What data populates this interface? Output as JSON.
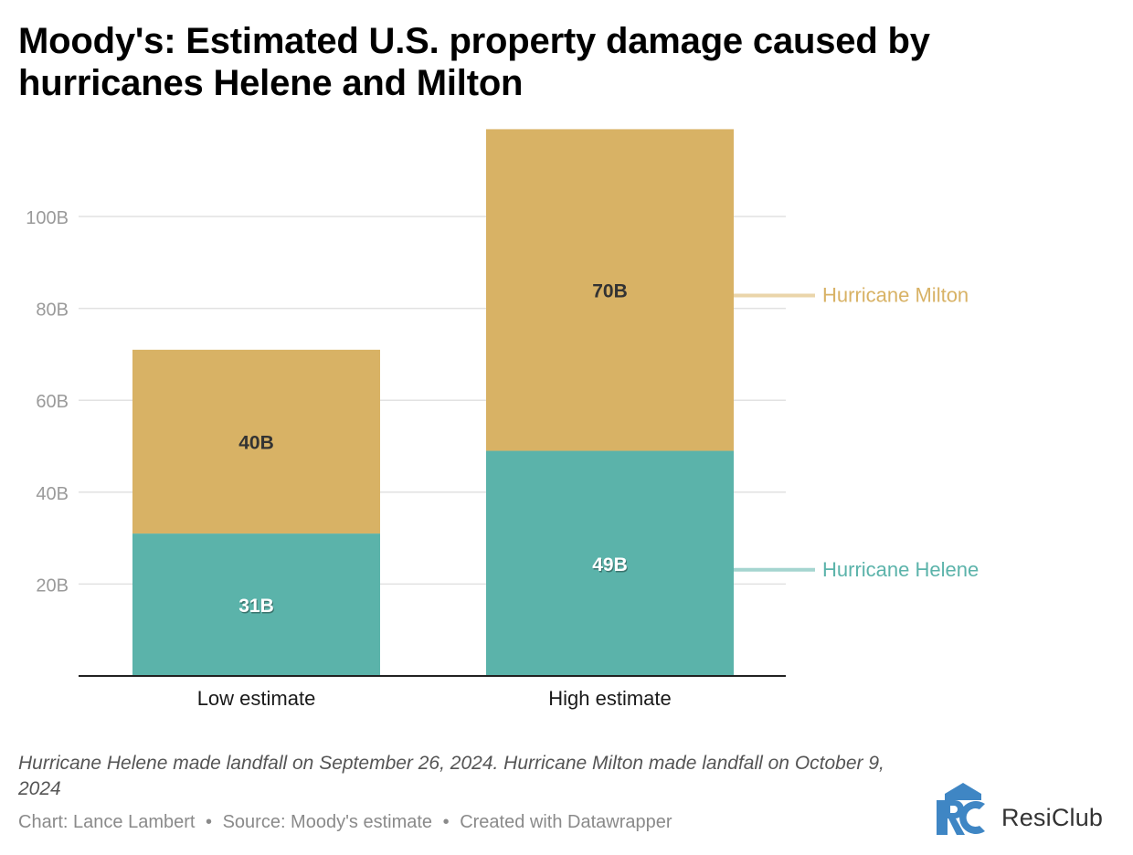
{
  "title_lines": [
    "Moody's: Estimated U.S. property damage caused by",
    "hurricanes Helene and Milton"
  ],
  "chart_data": {
    "type": "bar",
    "stacked": true,
    "categories": [
      "Low estimate",
      "High estimate"
    ],
    "series": [
      {
        "name": "Hurricane Helene",
        "values": [
          31,
          49
        ],
        "labels": [
          "31B",
          "49B"
        ],
        "color": "#5bb3aa"
      },
      {
        "name": "Hurricane Milton",
        "values": [
          40,
          70
        ],
        "labels": [
          "40B",
          "70B"
        ],
        "color": "#d8b265"
      }
    ],
    "y_ticks": [
      20,
      40,
      60,
      80,
      100
    ],
    "y_tick_labels": [
      "20B",
      "40B",
      "60B",
      "80B",
      "100B"
    ],
    "ylim": [
      0,
      119
    ],
    "grid": true,
    "legend": "right, inline labels"
  },
  "note": "Hurricane Helene made landfall on September 26, 2024. Hurricane Milton made landfall on October 9, 2024",
  "credits": {
    "chart_by": "Chart: Lance Lambert",
    "source": "Source: Moody's estimate",
    "tool": "Created with Datawrapper",
    "separator": "•"
  },
  "logo": {
    "mark_text": "RC",
    "name": "ResiClub",
    "color": "#3f86c4"
  }
}
